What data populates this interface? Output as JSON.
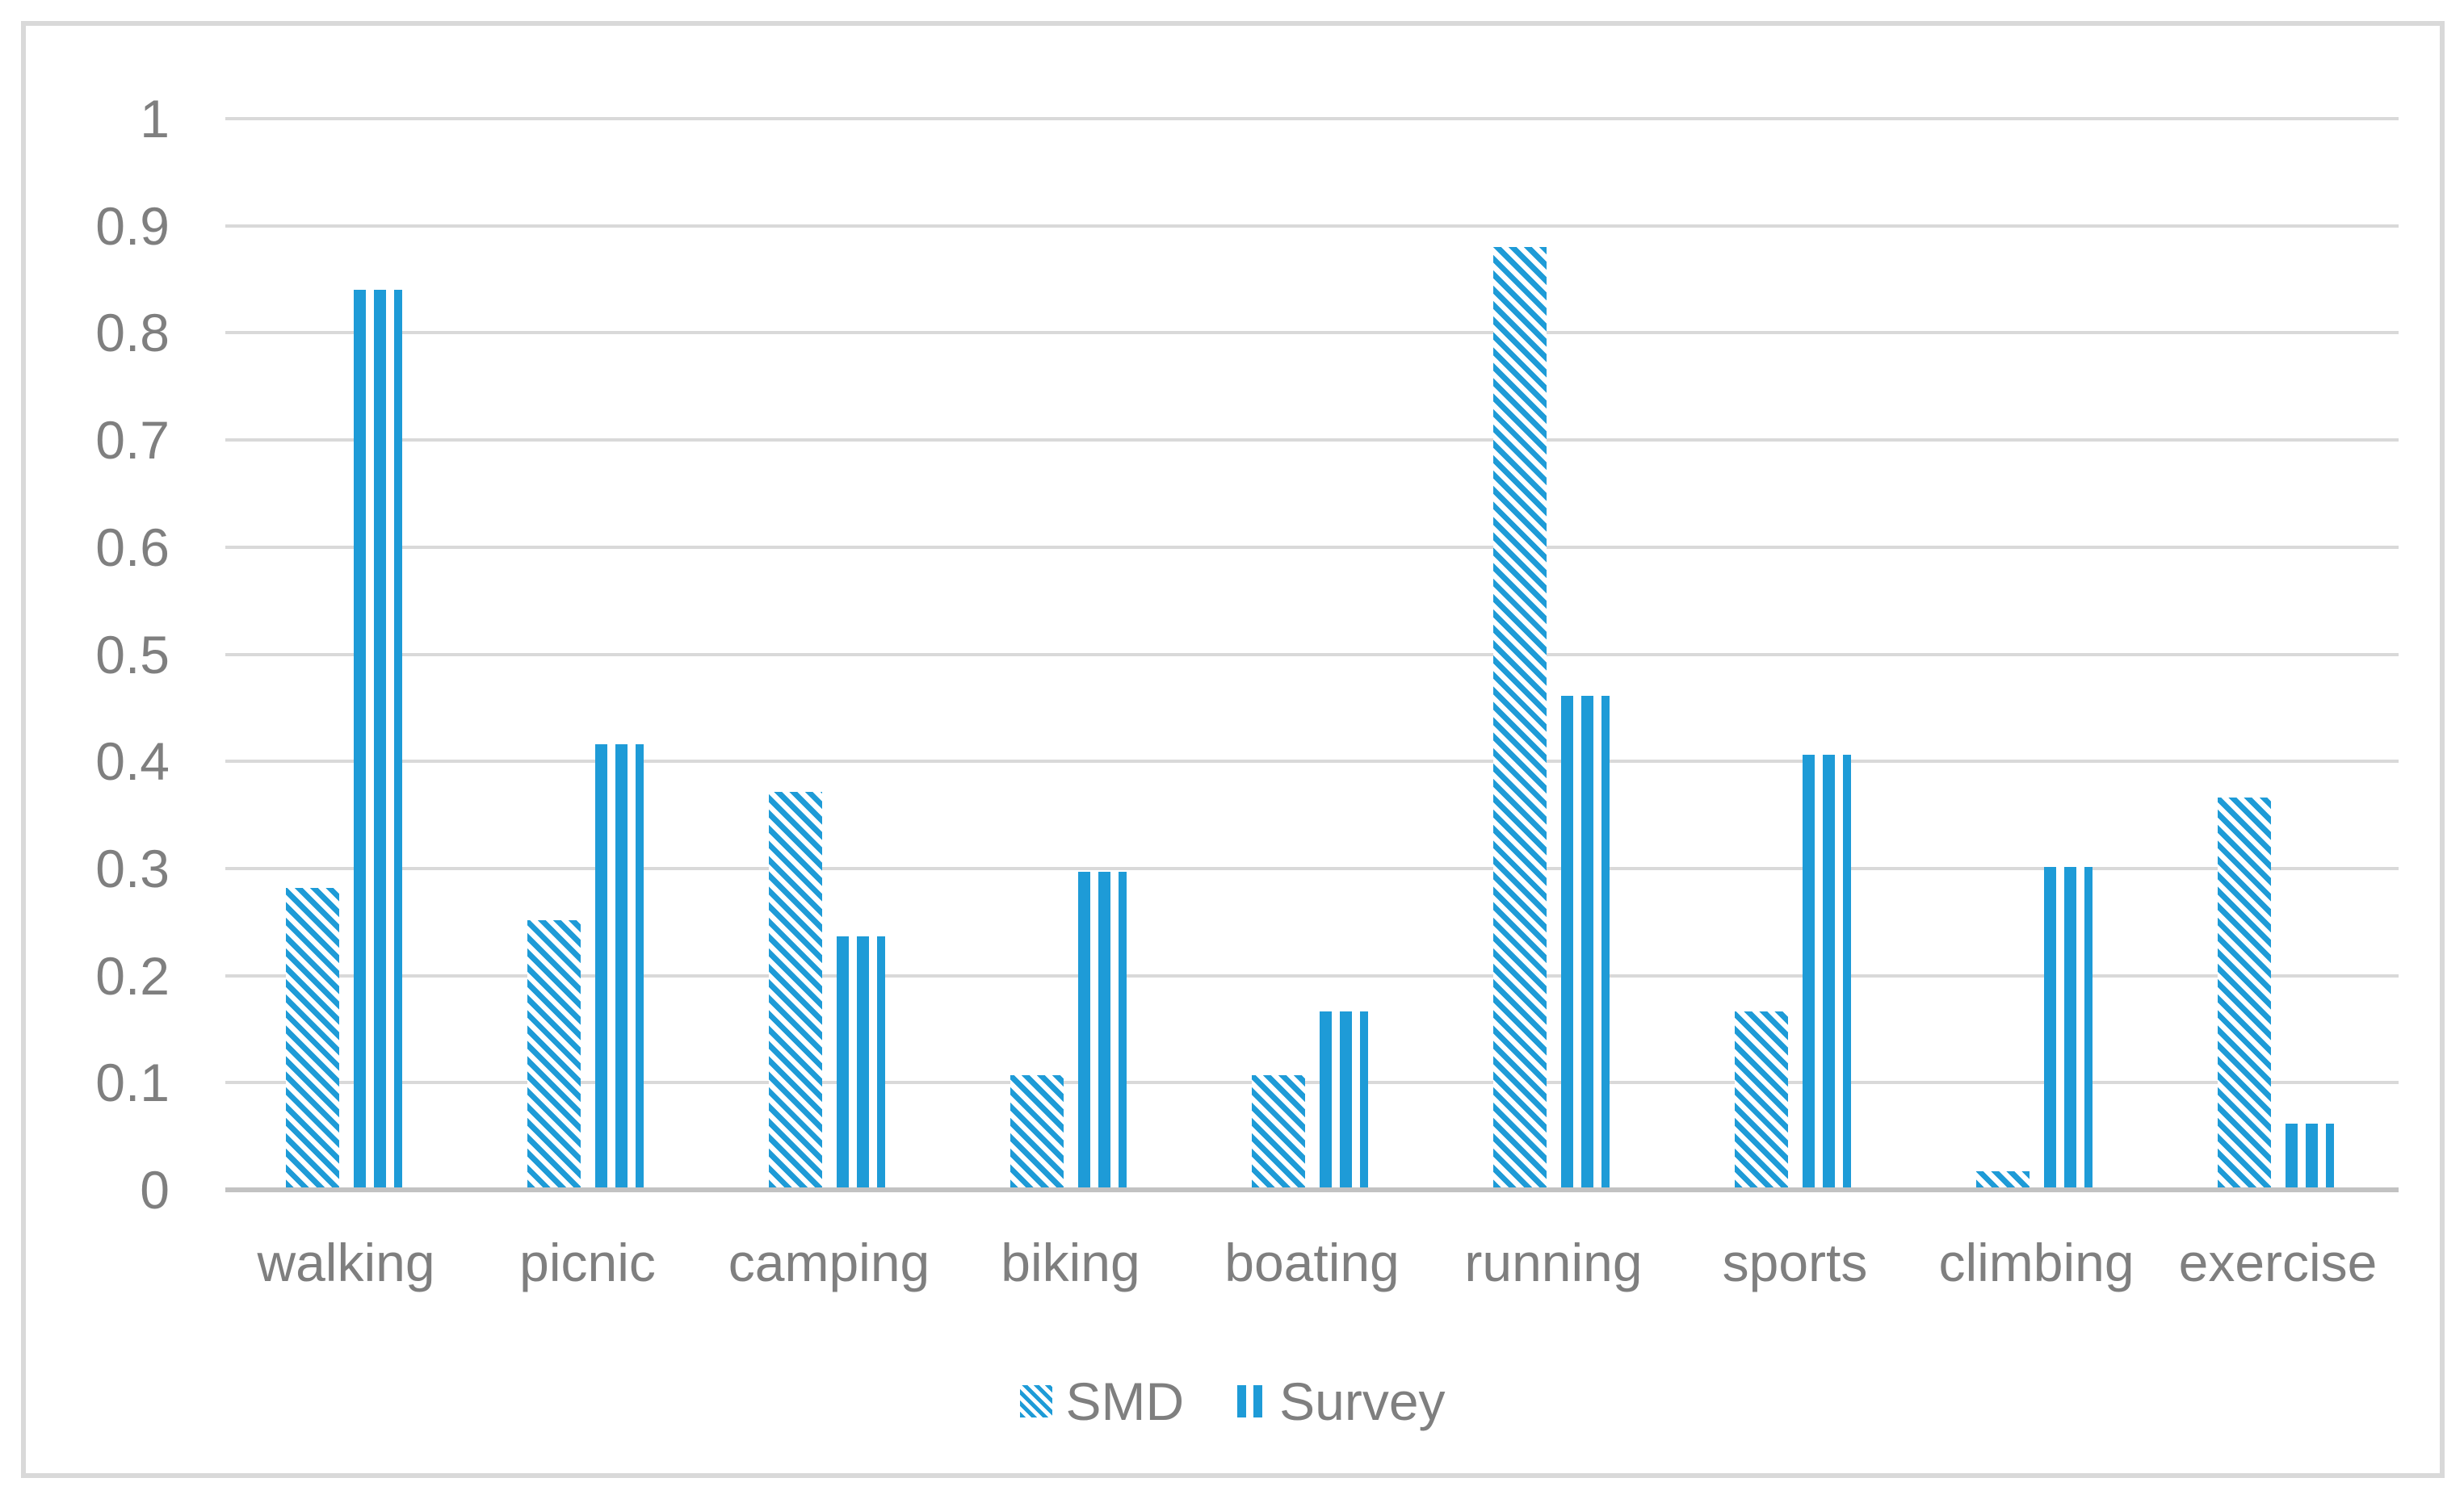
{
  "chart_data": {
    "type": "bar",
    "title": "",
    "xlabel": "",
    "ylabel": "",
    "categories": [
      "walking",
      "picnic",
      "camping",
      "biking",
      "boating",
      "running",
      "sports",
      "climbing",
      "exercise"
    ],
    "series": [
      {
        "name": "SMD",
        "pattern": "diagonal",
        "values": [
          0.28,
          0.25,
          0.37,
          0.105,
          0.105,
          0.88,
          0.165,
          0.015,
          0.365
        ]
      },
      {
        "name": "Survey",
        "pattern": "vertical",
        "values": [
          0.84,
          0.415,
          0.235,
          0.295,
          0.165,
          0.46,
          0.405,
          0.3,
          0.06
        ]
      }
    ],
    "ylim": [
      0,
      1
    ],
    "ytick_step": 0.1,
    "yticks_top_to_bottom": [
      "1",
      "0.9",
      "0.8",
      "0.7",
      "0.6",
      "0.5",
      "0.4",
      "0.3",
      "0.2",
      "0.1",
      "0"
    ],
    "grid": true,
    "legend_position": "bottom-center"
  },
  "legend": {
    "items": [
      {
        "label": "SMD",
        "swatch": "diagonal-hatch-swatch"
      },
      {
        "label": "Survey",
        "swatch": "vertical-stripe-swatch"
      }
    ]
  },
  "colors": {
    "bar_blue": "#1E9BD7",
    "gridline": "#D9D9D9",
    "axis_line": "#C2C2C2",
    "label_gray": "#7F7F7F",
    "frame_border": "#D9D9D9",
    "background": "#FFFFFF"
  }
}
